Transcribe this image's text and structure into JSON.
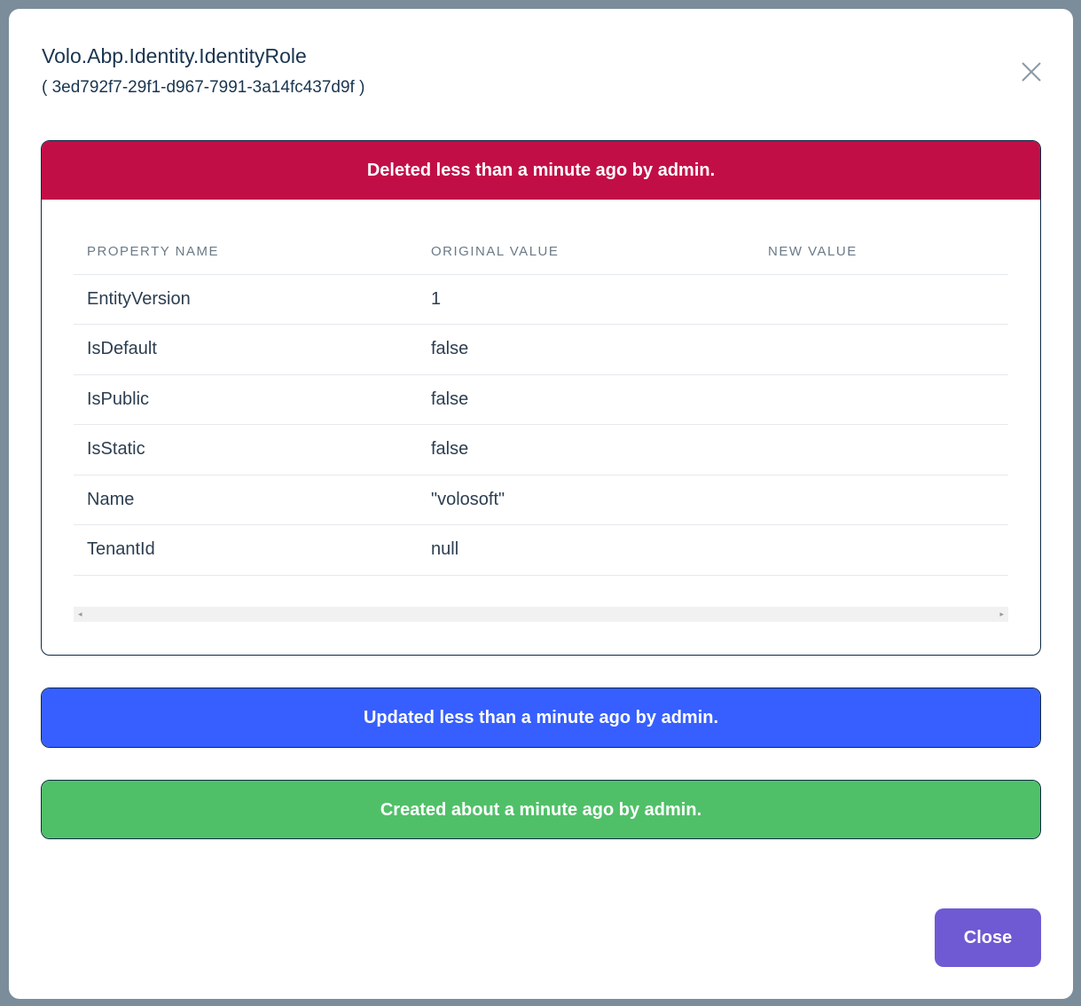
{
  "modal": {
    "title": "Volo.Abp.Identity.IdentityRole",
    "subtitle": "( 3ed792f7-29f1-d967-7991-3a14fc437d9f )",
    "close_label": "Close"
  },
  "changes": [
    {
      "label": "Deleted less than a minute ago by admin.",
      "color": "#c20e47"
    },
    {
      "label": "Updated less than a minute ago by admin.",
      "color": "#375fff"
    },
    {
      "label": "Created about a minute ago by admin.",
      "color": "#50c068"
    }
  ],
  "table": {
    "headers": [
      "PROPERTY NAME",
      "ORIGINAL VALUE",
      "NEW VALUE"
    ],
    "rows": [
      [
        "EntityVersion",
        "1",
        ""
      ],
      [
        "IsDefault",
        "false",
        ""
      ],
      [
        "IsPublic",
        "false",
        ""
      ],
      [
        "IsStatic",
        "false",
        ""
      ],
      [
        "Name",
        "\"volosoft\"",
        ""
      ],
      [
        "TenantId",
        "null",
        ""
      ]
    ]
  }
}
